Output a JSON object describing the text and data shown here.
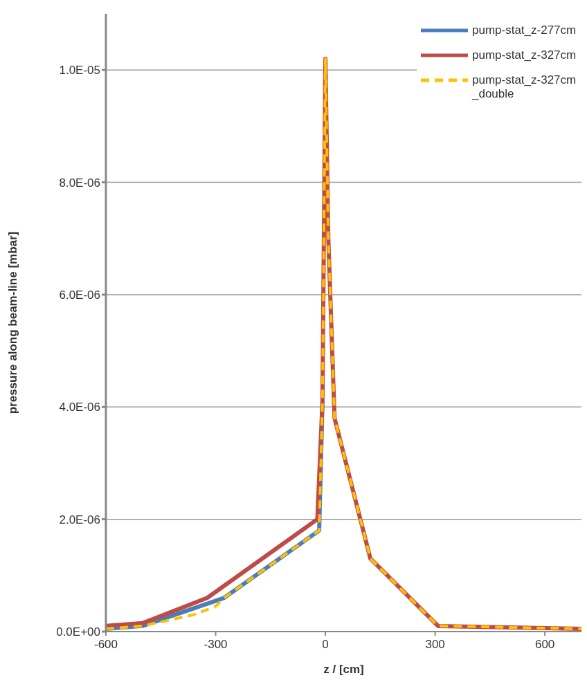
{
  "chart_data": {
    "type": "line",
    "xlabel": "z / [cm]",
    "ylabel": "pressure along beam-line [mbar]",
    "xlim": [
      -600,
      700
    ],
    "xticks": [
      -600,
      -300,
      0,
      300,
      600
    ],
    "ylim": [
      0,
      1.1e-05
    ],
    "yticks": [
      {
        "value": 0,
        "label": "0.0E+00"
      },
      {
        "value": 2e-06,
        "label": "2.0E-06"
      },
      {
        "value": 4e-06,
        "label": "4.0E-06"
      },
      {
        "value": 6e-06,
        "label": "6.0E-06"
      },
      {
        "value": 8e-06,
        "label": "8.0E-06"
      },
      {
        "value": 1e-05,
        "label": "1.0E-05"
      }
    ],
    "grid": "y",
    "legend": "top right",
    "marker": "none",
    "series": [
      {
        "name": "pump-stat_z-277cm",
        "color": "#4a7ebb",
        "line_style": "solid",
        "x": [
          -600,
          -500,
          -277,
          -17,
          -8
        ],
        "values": [
          5e-08,
          1e-07,
          6e-07,
          1.8e-06,
          4.1e-06
        ]
      },
      {
        "name": "pump-stat_z-327cm",
        "color": "#be4b48",
        "line_style": "solid",
        "x": [
          -600,
          -500,
          -323,
          -22,
          -8,
          0,
          8,
          25,
          123,
          308,
          700
        ],
        "values": [
          1e-07,
          1.5e-07,
          6e-07,
          2e-06,
          4.1e-06,
          1.02e-05,
          7e-06,
          3.8e-06,
          1.3e-06,
          1e-07,
          5e-08
        ]
      },
      {
        "name": "pump-stat_z-327cm_double",
        "color": "#ffc000",
        "line_style": "dashed",
        "x": [
          -600,
          -500,
          -360,
          -300,
          -277,
          -17,
          -8,
          0,
          8,
          25,
          123,
          308,
          700
        ],
        "values": [
          5e-08,
          1e-07,
          3e-07,
          4.5e-07,
          6e-07,
          1.8e-06,
          4.1e-06,
          1.02e-05,
          7e-06,
          3.8e-06,
          1.3e-06,
          1e-07,
          5e-08
        ]
      }
    ]
  }
}
